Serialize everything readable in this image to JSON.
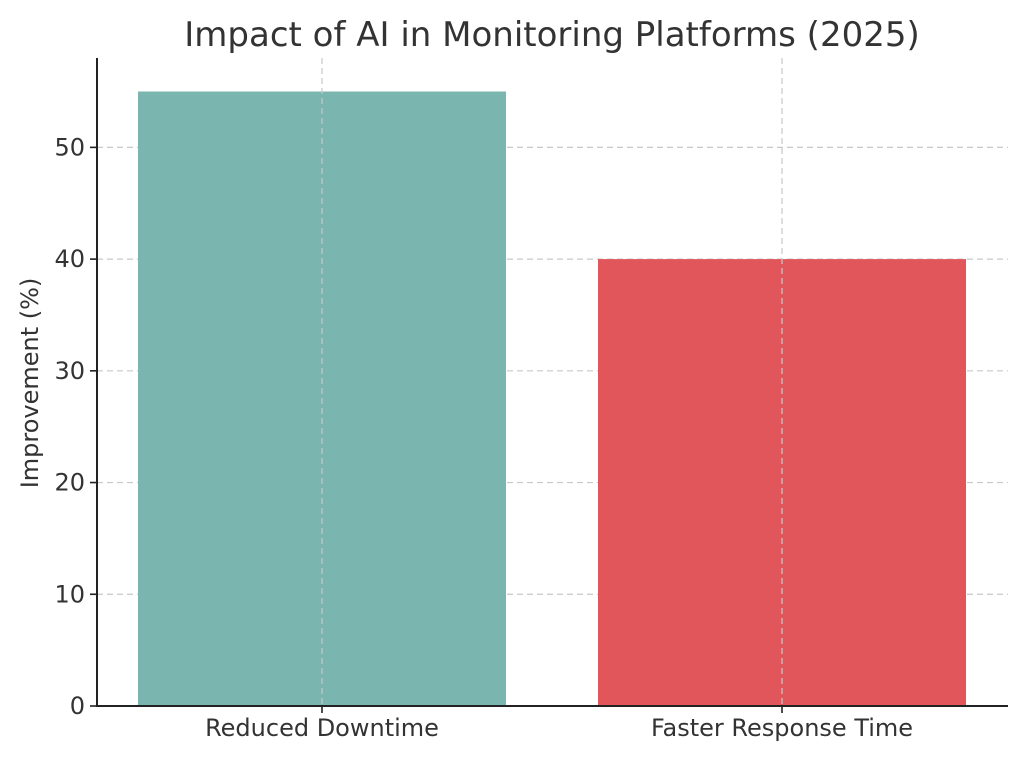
{
  "chart_data": {
    "type": "bar",
    "title": "Impact of AI in Monitoring Platforms (2025)",
    "xlabel": "",
    "ylabel": "Improvement (%)",
    "categories": [
      "Reduced Downtime",
      "Faster Response Time"
    ],
    "values": [
      55,
      40
    ],
    "colors": [
      "#7ab5af",
      "#e0565a"
    ],
    "ylim": [
      0,
      58
    ],
    "yticks": [
      0,
      10,
      20,
      30,
      40,
      50
    ],
    "grid": true,
    "legend": "none"
  }
}
